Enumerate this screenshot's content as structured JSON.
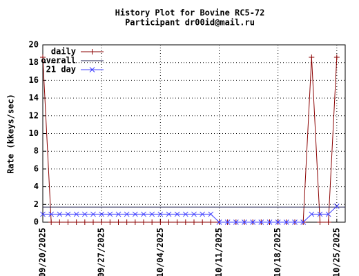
{
  "chart_data": {
    "type": "line",
    "title": "History Plot for Bovine RC5-72",
    "subtitle": "Participant dr00id@mail.ru",
    "y_label": "Rate (kkeys/sec)",
    "x": [
      "2025-09-20",
      "2025-09-21",
      "2025-09-22",
      "2025-09-23",
      "2025-09-24",
      "2025-09-25",
      "2025-09-26",
      "2025-09-27",
      "2025-09-28",
      "2025-09-29",
      "2025-09-30",
      "2025-10-01",
      "2025-10-02",
      "2025-10-03",
      "2025-10-04",
      "2025-10-05",
      "2025-10-06",
      "2025-10-07",
      "2025-10-08",
      "2025-10-09",
      "2025-10-10",
      "2025-10-11",
      "2025-10-12",
      "2025-10-13",
      "2025-10-14",
      "2025-10-15",
      "2025-10-16",
      "2025-10-17",
      "2025-10-18",
      "2025-10-19",
      "2025-10-20",
      "2025-10-21",
      "2025-10-22",
      "2025-10-23",
      "2025-10-24",
      "2025-10-25"
    ],
    "series": [
      {
        "name": "daily",
        "color": "#8b0000",
        "marker": "plus",
        "values": [
          18.6,
          0,
          0,
          0,
          0,
          0,
          0,
          0,
          0,
          0,
          0,
          0,
          0,
          0,
          0,
          0,
          0,
          0,
          0,
          0,
          0,
          0,
          0,
          0,
          0,
          0,
          0,
          0,
          0,
          0,
          0,
          0,
          18.6,
          0,
          0,
          18.6
        ]
      },
      {
        "name": "overall",
        "color": "#202050",
        "value": 1.7
      },
      {
        "name": "21 day",
        "color": "#4040ff",
        "marker": "cross",
        "values": [
          0.9,
          0.9,
          0.9,
          0.9,
          0.9,
          0.9,
          0.9,
          0.9,
          0.9,
          0.9,
          0.9,
          0.9,
          0.9,
          0.9,
          0.9,
          0.9,
          0.9,
          0.9,
          0.9,
          0.9,
          0.9,
          0,
          0,
          0,
          0,
          0,
          0,
          0,
          0,
          0,
          0,
          0,
          0.9,
          0.9,
          0.9,
          1.8
        ]
      }
    ],
    "xlim": [
      "2025-09-20",
      "2025-10-26"
    ],
    "xticks": [
      {
        "value": "2025-09-20",
        "label": "09/20/2025"
      },
      {
        "value": "2025-09-27",
        "label": "09/27/2025"
      },
      {
        "value": "2025-10-04",
        "label": "10/04/2025"
      },
      {
        "value": "2025-10-11",
        "label": "10/11/2025"
      },
      {
        "value": "2025-10-18",
        "label": "10/18/2025"
      },
      {
        "value": "2025-10-25",
        "label": "10/25/2025"
      }
    ],
    "ylim": [
      0,
      20
    ],
    "yticks": [
      0,
      2,
      4,
      6,
      8,
      10,
      12,
      14,
      16,
      18,
      20
    ],
    "grid": true,
    "legend": "top-left"
  }
}
